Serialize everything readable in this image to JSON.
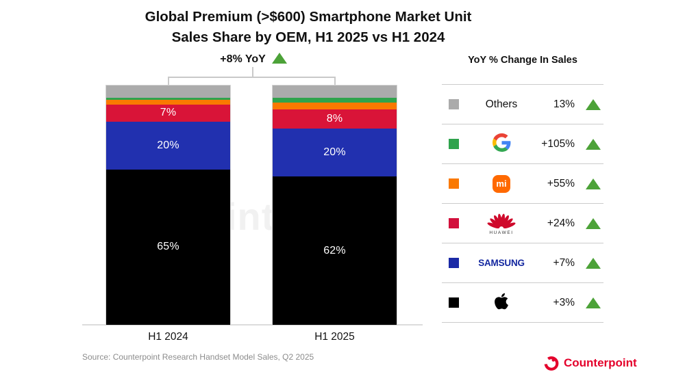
{
  "title": {
    "line1": "Global Premium (>$600) Smartphone Market Unit",
    "line2": "Sales Share by OEM, H1 2025 vs H1 2024"
  },
  "total_change": {
    "label": "+8% YoY",
    "direction": "up"
  },
  "chart_data": {
    "type": "bar",
    "stacked": true,
    "categories": [
      "H1 2024",
      "H1 2025"
    ],
    "series": [
      {
        "name": "Apple",
        "color": "#000000",
        "values": [
          65,
          62
        ],
        "labels": [
          "65%",
          "62%"
        ]
      },
      {
        "name": "Samsung",
        "color": "#2130AF",
        "values": [
          20,
          20
        ],
        "labels": [
          "20%",
          "20%"
        ]
      },
      {
        "name": "Huawei",
        "color": "#D91438",
        "values": [
          7,
          8
        ],
        "labels": [
          "7%",
          "8%"
        ]
      },
      {
        "name": "Xiaomi",
        "color": "#FA7900",
        "values": [
          2,
          3
        ],
        "labels": [
          "",
          ""
        ]
      },
      {
        "name": "Google",
        "color": "#2FA34C",
        "values": [
          1,
          2
        ],
        "labels": [
          "",
          ""
        ]
      },
      {
        "name": "Others",
        "color": "#ABABAB",
        "values": [
          5,
          5
        ],
        "labels": [
          "",
          ""
        ]
      }
    ],
    "ylim": [
      0,
      100
    ],
    "grid": false,
    "legend_position": "right"
  },
  "legend": {
    "header": "YoY % Change In Sales",
    "triangle_color": "#4CA238",
    "rows": [
      {
        "name": "Others",
        "swatch": "#ABABAB",
        "logo": "others",
        "logo_text": "Others",
        "value": "13%",
        "direction": "up"
      },
      {
        "name": "Google",
        "swatch": "#2FA34C",
        "logo": "google",
        "logo_text": "G",
        "value": "+105%",
        "direction": "up"
      },
      {
        "name": "Xiaomi",
        "swatch": "#FA7900",
        "logo": "xiaomi",
        "logo_text": "mi",
        "value": "+55%",
        "direction": "up"
      },
      {
        "name": "Huawei",
        "swatch": "#D2103C",
        "logo": "huawei",
        "logo_text": "HUAWEI",
        "value": "+24%",
        "direction": "up"
      },
      {
        "name": "Samsung",
        "swatch": "#1B2AA6",
        "logo": "samsung",
        "logo_text": "SAMSUNG",
        "value": "+7%",
        "direction": "up"
      },
      {
        "name": "Apple",
        "swatch": "#000000",
        "logo": "apple",
        "logo_text": "",
        "value": "+3%",
        "direction": "up"
      }
    ]
  },
  "watermark": {
    "text": "int"
  },
  "source": "Source: Counterpoint Research Handset Model Sales, Q2 2025",
  "branding": {
    "name": "Counterpoint",
    "color": "#E4012B"
  }
}
